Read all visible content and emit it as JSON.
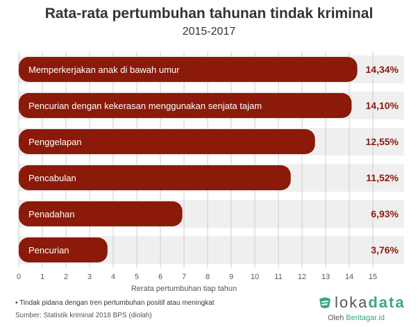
{
  "header": {
    "title": "Rata-rata pertumbuhan tahunan tindak kriminal",
    "subtitle": "2015-2017"
  },
  "chart_data": {
    "type": "bar",
    "orientation": "horizontal",
    "categories": [
      "Memperkerjakan anak di bawah umur",
      "Pencurian dengan kekerasan menggunakan senjata tajam",
      "Penggelapan",
      "Pencabulan",
      "Penadahan",
      "Pencurian"
    ],
    "values": [
      14.34,
      14.1,
      12.55,
      11.52,
      6.93,
      3.76
    ],
    "value_labels": [
      "14,34%",
      "14,10%",
      "12,55%",
      "11,52%",
      "6,93%",
      "3,76%"
    ],
    "xlabel": "Rerata pertumbuhan tiap tahun",
    "xlim": [
      0,
      16
    ],
    "xticks": [
      0,
      1,
      2,
      3,
      4,
      5,
      6,
      7,
      8,
      9,
      10,
      11,
      12,
      13,
      14,
      15
    ],
    "grid": true,
    "colors": {
      "bar": "#8b1a0a",
      "row_bg": "#efefef",
      "value_text": "#8b1a0a"
    }
  },
  "footer": {
    "note": "• Tindak pidana dengan tren pertumbuhan positif atau meningkat",
    "source": "Sumber: Statistik kriminal 2018 BPS (diolah)"
  },
  "logo": {
    "name_part1": "loka",
    "name_part2": "data",
    "by_prefix": "Oleh ",
    "by_brand": "Beritagar.id",
    "icon": "lokadata-logo-icon"
  }
}
